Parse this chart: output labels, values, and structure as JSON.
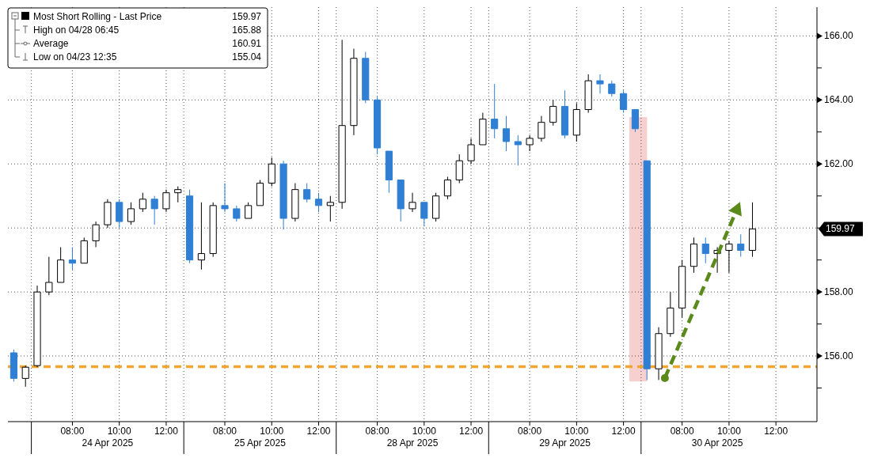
{
  "chart_data": {
    "type": "candlestick",
    "categories": [
      null,
      null,
      null,
      null,
      null,
      "08:00",
      null,
      null,
      null,
      "10:00",
      null,
      null,
      null,
      "12:00",
      null,
      null,
      null,
      null,
      "08:00",
      null,
      null,
      null,
      "10:00",
      null,
      null,
      null,
      "12:00",
      null,
      null,
      null,
      null,
      "08:00",
      null,
      null,
      null,
      "10:00",
      null,
      null,
      null,
      "12:00",
      null,
      null,
      null,
      null,
      "08:00",
      null,
      null,
      null,
      "10:00",
      null,
      null,
      null,
      "12:00",
      null,
      null,
      null,
      null,
      "08:00",
      null,
      null,
      null,
      "10:00",
      null,
      null,
      null,
      "12:00",
      null,
      null,
      null
    ],
    "series": [
      {
        "name": "Most Short Rolling - Last Price",
        "color": "#000000",
        "colors": [
          "#2f7fd4",
          "#ffffff",
          "#ffffff",
          "#ffffff",
          "#ffffff",
          "#2f7fd4",
          "#ffffff",
          "#ffffff",
          "#ffffff",
          "#2f7fd4",
          "#ffffff",
          "#ffffff",
          "#2f7fd4",
          "#ffffff",
          "#ffffff",
          "#2f7fd4",
          "#ffffff",
          "#ffffff",
          "#2f7fd4",
          "#2f7fd4",
          "#ffffff",
          "#ffffff",
          "#ffffff",
          "#2f7fd4",
          "#ffffff",
          "#2f7fd4",
          "#2f7fd4",
          "#ffffff",
          "#ffffff",
          "#ffffff",
          "#2f7fd4",
          "#2f7fd4",
          "#2f7fd4",
          "#2f7fd4",
          "#ffffff",
          "#2f7fd4",
          "#ffffff",
          "#ffffff",
          "#ffffff",
          "#ffffff",
          "#ffffff",
          "#2f7fd4",
          "#2f7fd4",
          "#2f7fd4",
          "#ffffff",
          "#ffffff",
          "#ffffff",
          "#2f7fd4",
          "#ffffff",
          "#ffffff",
          "#2f7fd4",
          "#2f7fd4",
          "#2f7fd4",
          "#2f7fd4",
          "#2f7fd4",
          "#ffffff",
          "#ffffff",
          "#ffffff",
          "#ffffff",
          "#2f7fd4",
          "#ffffff",
          "#ffffff",
          "#2f7fd4",
          "#ffffff",
          null,
          null,
          null,
          null,
          null
        ],
        "ohlc": [
          [
            156.1,
            156.2,
            155.2,
            155.3
          ],
          [
            155.3,
            155.7,
            155.04,
            155.65
          ],
          [
            155.7,
            158.2,
            155.65,
            158.0
          ],
          [
            158.0,
            159.1,
            157.9,
            158.3
          ],
          [
            158.3,
            159.4,
            158.3,
            159.0
          ],
          [
            159.0,
            159.4,
            158.7,
            158.9
          ],
          [
            158.9,
            159.7,
            158.9,
            159.6
          ],
          [
            159.6,
            160.2,
            159.4,
            160.1
          ],
          [
            160.1,
            160.9,
            160.0,
            160.8
          ],
          [
            160.8,
            160.9,
            160.0,
            160.2
          ],
          [
            160.2,
            160.8,
            160.1,
            160.6
          ],
          [
            160.6,
            161.1,
            160.5,
            160.9
          ],
          [
            160.9,
            161.0,
            160.1,
            160.6
          ],
          [
            160.6,
            161.2,
            160.5,
            161.1
          ],
          [
            161.1,
            161.3,
            160.8,
            161.2
          ],
          [
            161.0,
            161.2,
            158.9,
            159.0
          ],
          [
            159.0,
            160.8,
            158.7,
            159.2
          ],
          [
            159.2,
            160.8,
            159.1,
            160.7
          ],
          [
            160.7,
            161.4,
            160.5,
            160.6
          ],
          [
            160.6,
            160.7,
            160.2,
            160.3
          ],
          [
            160.3,
            160.8,
            160.3,
            160.7
          ],
          [
            160.7,
            161.5,
            160.7,
            161.4
          ],
          [
            161.4,
            162.2,
            161.3,
            162.0
          ],
          [
            162.0,
            162.1,
            159.95,
            160.3
          ],
          [
            160.3,
            161.4,
            160.2,
            161.2
          ],
          [
            161.2,
            161.4,
            160.8,
            160.9
          ],
          [
            160.9,
            161.1,
            160.5,
            160.7
          ],
          [
            160.7,
            161.0,
            160.2,
            160.8
          ],
          [
            160.8,
            165.88,
            160.6,
            163.2
          ],
          [
            163.2,
            165.6,
            162.9,
            165.3
          ],
          [
            165.3,
            165.5,
            163.9,
            164.0
          ],
          [
            164.0,
            164.1,
            162.3,
            162.5
          ],
          [
            162.4,
            162.4,
            161.1,
            161.5
          ],
          [
            161.5,
            161.5,
            160.2,
            160.6
          ],
          [
            160.6,
            161.1,
            160.5,
            160.8
          ],
          [
            160.8,
            160.8,
            160.05,
            160.3
          ],
          [
            160.3,
            161.1,
            160.2,
            161.0
          ],
          [
            161.0,
            161.6,
            160.9,
            161.5
          ],
          [
            161.5,
            162.3,
            161.4,
            162.1
          ],
          [
            162.1,
            162.8,
            162.0,
            162.6
          ],
          [
            162.6,
            163.6,
            162.6,
            163.4
          ],
          [
            163.4,
            164.5,
            162.8,
            163.1
          ],
          [
            163.1,
            163.5,
            162.4,
            162.7
          ],
          [
            162.7,
            162.9,
            161.95,
            162.6
          ],
          [
            162.6,
            162.9,
            162.4,
            162.8
          ],
          [
            162.8,
            163.5,
            162.7,
            163.3
          ],
          [
            163.3,
            164.0,
            163.2,
            163.8
          ],
          [
            163.8,
            164.3,
            162.8,
            162.9
          ],
          [
            162.9,
            163.9,
            162.7,
            163.7
          ],
          [
            163.7,
            164.8,
            163.6,
            164.6
          ],
          [
            164.6,
            164.8,
            164.2,
            164.5
          ],
          [
            164.5,
            164.6,
            164.1,
            164.2
          ],
          [
            164.2,
            164.3,
            163.6,
            163.7
          ],
          [
            163.7,
            163.7,
            163.0,
            163.1
          ],
          [
            162.1,
            162.1,
            155.25,
            155.6
          ],
          [
            155.6,
            156.9,
            155.25,
            156.7
          ],
          [
            156.7,
            158.0,
            156.6,
            157.5
          ],
          [
            157.5,
            159.0,
            157.2,
            158.8
          ],
          [
            158.8,
            159.7,
            158.6,
            159.5
          ],
          [
            159.5,
            159.7,
            158.9,
            159.2
          ],
          [
            159.2,
            159.4,
            158.6,
            159.3
          ],
          [
            159.3,
            159.6,
            158.6,
            159.5
          ],
          [
            159.5,
            159.8,
            159.1,
            159.3
          ],
          [
            159.3,
            160.8,
            159.1,
            159.97
          ],
          null,
          null,
          null,
          null,
          null
        ]
      }
    ],
    "ylim": [
      153.95,
      166.9
    ],
    "yticks": [
      {
        "value": 155,
        "label": null
      },
      {
        "value": 156,
        "label": "156.00"
      },
      {
        "value": 157,
        "label": null
      },
      {
        "value": 158,
        "label": "158.00"
      },
      {
        "value": 159,
        "label": null
      },
      {
        "value": 160,
        "label": null
      },
      {
        "value": 161,
        "label": null
      },
      {
        "value": 162,
        "label": "162.00"
      },
      {
        "value": 163,
        "label": null
      },
      {
        "value": 164,
        "label": "164.00"
      },
      {
        "value": 165,
        "label": null
      },
      {
        "value": 166,
        "label": "166.00"
      }
    ],
    "grid": true,
    "legend": "top left",
    "ref_lines": [
      {
        "axis": "y",
        "value": 155.67,
        "color": "#f2a531",
        "line_style": "dashed"
      }
    ],
    "annotations": [
      "159.97",
      "159.97",
      "High on 04/28 06:45",
      "165.88",
      "Average",
      "160.91",
      "Low on 04/23 12:35",
      "155.04",
      "24 Apr 2025",
      "25 Apr 2025",
      "28 Apr 2025",
      "29 Apr 2025",
      "30 Apr 2025"
    ]
  }
}
